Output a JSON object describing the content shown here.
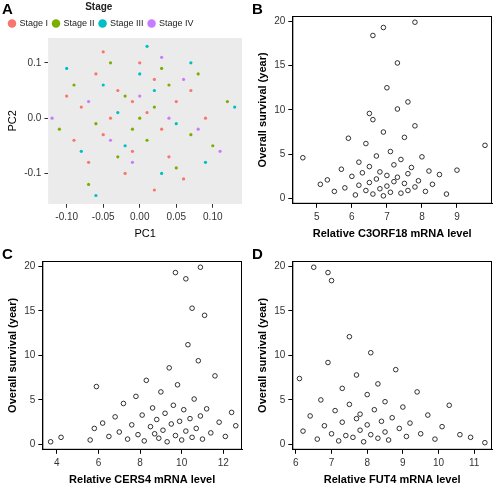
{
  "chart_data": [
    {
      "type": "scatter",
      "panel": "A",
      "x_label": "PC1",
      "y_label": "PC2",
      "grid": true,
      "legend": "top-left",
      "legend_title": "Stage",
      "marker": "circle",
      "xlim": [
        -0.125,
        0.14
      ],
      "xticks": [
        {
          "value": -0.1,
          "label": "-0.10"
        },
        {
          "value": -0.05,
          "label": "-0.05"
        },
        {
          "value": 0,
          "label": "0.00"
        },
        {
          "value": 0.05,
          "label": "0.05"
        },
        {
          "value": 0.1,
          "label": "0.10"
        }
      ],
      "ylim": [
        -0.155,
        0.145
      ],
      "yticks": [
        {
          "value": -0.1,
          "label": "-0.1"
        },
        {
          "value": 0,
          "label": "0.0"
        },
        {
          "value": 0.1,
          "label": "0.1"
        }
      ],
      "series": [
        {
          "name": "Stage I",
          "color": "#F8766D",
          "points": [
            [
              -0.08,
              0.02
            ],
            [
              -0.05,
              -0.03
            ],
            [
              -0.03,
              0.05
            ],
            [
              -0.01,
              -0.06
            ],
            [
              0.01,
              0.01
            ],
            [
              0.03,
              -0.02
            ],
            [
              -0.06,
              0.08
            ],
            [
              0.02,
              0.07
            ],
            [
              -0.02,
              -0.1
            ],
            [
              0.05,
              0.03
            ],
            [
              -0.09,
              -0.04
            ],
            [
              0.0,
              0.1
            ],
            [
              0.04,
              -0.07
            ],
            [
              -0.04,
              0.0
            ],
            [
              0.07,
              0.05
            ],
            [
              -0.07,
              -0.08
            ],
            [
              0.06,
              -0.11
            ],
            [
              -0.1,
              0.04
            ],
            [
              0.09,
              0.0
            ],
            [
              -0.01,
              0.03
            ],
            [
              0.02,
              -0.13
            ],
            [
              -0.05,
              0.12
            ]
          ]
        },
        {
          "name": "Stage II",
          "color": "#7CAE00",
          "points": [
            [
              -0.06,
              -0.01
            ],
            [
              -0.02,
              0.04
            ],
            [
              0.01,
              -0.04
            ],
            [
              0.04,
              0.06
            ],
            [
              -0.09,
              0.06
            ],
            [
              0.07,
              -0.03
            ],
            [
              -0.03,
              -0.07
            ],
            [
              0.0,
              0.0
            ],
            [
              0.03,
              0.09
            ],
            [
              -0.11,
              -0.02
            ],
            [
              0.05,
              -0.09
            ],
            [
              -0.04,
              0.1
            ],
            [
              0.08,
              0.08
            ],
            [
              -0.07,
              -0.12
            ],
            [
              0.1,
              -0.05
            ],
            [
              0.02,
              0.02
            ],
            [
              -0.01,
              -0.02
            ],
            [
              0.12,
              0.03
            ]
          ]
        },
        {
          "name": "Stage III",
          "color": "#00BFC4",
          "points": [
            [
              -0.05,
              0.06
            ],
            [
              -0.02,
              -0.05
            ],
            [
              0.02,
              0.05
            ],
            [
              0.05,
              -0.01
            ],
            [
              -0.08,
              -0.06
            ],
            [
              0.0,
              0.08
            ],
            [
              0.07,
              0.1
            ],
            [
              -0.03,
              0.01
            ],
            [
              0.09,
              -0.08
            ],
            [
              -0.1,
              0.09
            ],
            [
              0.03,
              -0.1
            ],
            [
              0.13,
              0.02
            ],
            [
              -0.06,
              -0.14
            ],
            [
              0.01,
              0.13
            ]
          ]
        },
        {
          "name": "Stage IV",
          "color": "#C77CFF",
          "points": [
            [
              -0.04,
              -0.04
            ],
            [
              0.0,
              0.04
            ],
            [
              0.04,
              0.0
            ],
            [
              -0.07,
              0.03
            ],
            [
              0.06,
              0.07
            ],
            [
              -0.01,
              -0.08
            ],
            [
              0.08,
              -0.02
            ],
            [
              -0.12,
              0.0
            ],
            [
              0.03,
              0.11
            ],
            [
              0.11,
              -0.06
            ]
          ]
        }
      ]
    },
    {
      "type": "scatter",
      "panel": "B",
      "x_label": "Relative C3ORF18 mRNA level",
      "y_label": "Overall survival (year)",
      "grid": false,
      "marker": "open circle",
      "color": "#000000",
      "xlim": [
        4.3,
        10.0
      ],
      "xticks": [
        5,
        6,
        7,
        8,
        9
      ],
      "ylim": [
        -0.6,
        20.6
      ],
      "yticks": [
        0,
        5,
        10,
        15,
        20
      ],
      "points": [
        [
          4.6,
          4.6
        ],
        [
          5.1,
          1.6
        ],
        [
          5.3,
          2.1
        ],
        [
          5.5,
          0.8
        ],
        [
          5.7,
          3.3
        ],
        [
          5.8,
          1.2
        ],
        [
          5.9,
          6.8
        ],
        [
          6.0,
          2.5
        ],
        [
          6.1,
          0.4
        ],
        [
          6.2,
          4.1
        ],
        [
          6.2,
          1.5
        ],
        [
          6.3,
          2.9
        ],
        [
          6.4,
          0.9
        ],
        [
          6.4,
          6.2
        ],
        [
          6.5,
          1.8
        ],
        [
          6.5,
          3.6
        ],
        [
          6.6,
          0.5
        ],
        [
          6.6,
          8.9
        ],
        [
          6.7,
          2.2
        ],
        [
          6.7,
          4.8
        ],
        [
          6.8,
          1.1
        ],
        [
          6.8,
          3.0
        ],
        [
          6.9,
          0.3
        ],
        [
          6.9,
          7.5
        ],
        [
          7.0,
          2.6
        ],
        [
          7.0,
          1.4
        ],
        [
          7.1,
          5.3
        ],
        [
          7.1,
          0.7
        ],
        [
          7.2,
          3.8
        ],
        [
          7.2,
          1.9
        ],
        [
          7.3,
          10.1
        ],
        [
          7.3,
          2.4
        ],
        [
          7.4,
          0.6
        ],
        [
          7.4,
          4.4
        ],
        [
          7.5,
          1.7
        ],
        [
          7.5,
          6.9
        ],
        [
          7.6,
          2.8
        ],
        [
          7.6,
          0.9
        ],
        [
          7.7,
          3.5
        ],
        [
          7.8,
          8.2
        ],
        [
          7.8,
          1.3
        ],
        [
          7.9,
          2.0
        ],
        [
          8.0,
          4.7
        ],
        [
          8.1,
          0.8
        ],
        [
          8.2,
          3.1
        ],
        [
          8.3,
          1.6
        ],
        [
          8.5,
          2.7
        ],
        [
          8.7,
          0.5
        ],
        [
          9.0,
          3.2
        ],
        [
          9.8,
          6.0
        ],
        [
          6.6,
          18.4
        ],
        [
          6.9,
          19.3
        ],
        [
          7.8,
          19.9
        ],
        [
          7.3,
          15.3
        ],
        [
          7.0,
          12.5
        ],
        [
          6.5,
          9.6
        ],
        [
          7.6,
          10.9
        ]
      ]
    },
    {
      "type": "scatter",
      "panel": "C",
      "x_label": "Relative CERS4 mRNA level",
      "y_label": "Overall survival (year)",
      "grid": false,
      "marker": "open circle",
      "color": "#000000",
      "xlim": [
        3.3,
        12.9
      ],
      "xticks": [
        4,
        6,
        8,
        10,
        12
      ],
      "ylim": [
        -0.6,
        20.6
      ],
      "yticks": [
        0,
        5,
        10,
        15,
        20
      ],
      "points": [
        [
          3.7,
          0.3
        ],
        [
          4.2,
          0.8
        ],
        [
          5.6,
          0.5
        ],
        [
          5.8,
          1.8
        ],
        [
          5.9,
          6.5
        ],
        [
          6.2,
          2.4
        ],
        [
          6.5,
          0.9
        ],
        [
          6.8,
          3.1
        ],
        [
          7.0,
          1.4
        ],
        [
          7.2,
          4.6
        ],
        [
          7.4,
          0.6
        ],
        [
          7.6,
          2.2
        ],
        [
          7.8,
          5.4
        ],
        [
          7.9,
          1.1
        ],
        [
          8.1,
          3.3
        ],
        [
          8.2,
          0.4
        ],
        [
          8.3,
          7.2
        ],
        [
          8.5,
          2.0
        ],
        [
          8.6,
          4.1
        ],
        [
          8.7,
          1.2
        ],
        [
          8.8,
          2.8
        ],
        [
          8.9,
          0.7
        ],
        [
          9.0,
          5.9
        ],
        [
          9.1,
          1.6
        ],
        [
          9.2,
          3.5
        ],
        [
          9.3,
          0.3
        ],
        [
          9.4,
          8.6
        ],
        [
          9.5,
          2.3
        ],
        [
          9.6,
          4.4
        ],
        [
          9.7,
          1.0
        ],
        [
          9.7,
          19.3
        ],
        [
          9.8,
          6.7
        ],
        [
          9.9,
          2.6
        ],
        [
          10.0,
          0.5
        ],
        [
          10.1,
          3.9
        ],
        [
          10.2,
          18.6
        ],
        [
          10.2,
          1.5
        ],
        [
          10.3,
          11.2
        ],
        [
          10.4,
          2.9
        ],
        [
          10.5,
          15.3
        ],
        [
          10.5,
          0.8
        ],
        [
          10.6,
          5.1
        ],
        [
          10.7,
          1.8
        ],
        [
          10.8,
          9.4
        ],
        [
          10.9,
          19.9
        ],
        [
          10.9,
          3.2
        ],
        [
          11.0,
          0.6
        ],
        [
          11.1,
          14.5
        ],
        [
          11.2,
          4.0
        ],
        [
          11.4,
          1.3
        ],
        [
          11.6,
          7.7
        ],
        [
          11.8,
          2.5
        ],
        [
          12.1,
          0.9
        ],
        [
          12.4,
          3.6
        ],
        [
          12.6,
          2.1
        ]
      ]
    },
    {
      "type": "scatter",
      "panel": "D",
      "x_label": "Relative FUT4 mRNA level",
      "y_label": "Overall survival (year)",
      "grid": false,
      "marker": "open circle",
      "color": "#000000",
      "xlim": [
        5.9,
        11.5
      ],
      "xticks": [
        6,
        7,
        8,
        9,
        10,
        11
      ],
      "ylim": [
        -0.6,
        20.6
      ],
      "yticks": [
        0,
        5,
        10,
        15,
        20
      ],
      "points": [
        [
          6.1,
          7.4
        ],
        [
          6.2,
          1.5
        ],
        [
          6.4,
          3.2
        ],
        [
          6.5,
          19.9
        ],
        [
          6.6,
          0.6
        ],
        [
          6.7,
          5.0
        ],
        [
          6.8,
          2.1
        ],
        [
          6.9,
          19.3
        ],
        [
          6.9,
          9.2
        ],
        [
          7.0,
          18.4
        ],
        [
          7.0,
          1.2
        ],
        [
          7.1,
          3.8
        ],
        [
          7.2,
          0.4
        ],
        [
          7.3,
          6.3
        ],
        [
          7.3,
          2.5
        ],
        [
          7.4,
          1.0
        ],
        [
          7.5,
          4.5
        ],
        [
          7.5,
          12.1
        ],
        [
          7.6,
          0.8
        ],
        [
          7.7,
          2.9
        ],
        [
          7.7,
          7.8
        ],
        [
          7.8,
          1.6
        ],
        [
          7.8,
          3.4
        ],
        [
          7.9,
          0.3
        ],
        [
          8.0,
          5.6
        ],
        [
          8.0,
          2.2
        ],
        [
          8.1,
          10.3
        ],
        [
          8.1,
          1.1
        ],
        [
          8.2,
          3.9
        ],
        [
          8.3,
          0.7
        ],
        [
          8.3,
          6.8
        ],
        [
          8.4,
          2.6
        ],
        [
          8.5,
          1.4
        ],
        [
          8.5,
          4.8
        ],
        [
          8.6,
          0.5
        ],
        [
          8.7,
          3.0
        ],
        [
          8.8,
          8.4
        ],
        [
          8.9,
          1.8
        ],
        [
          9.0,
          4.2
        ],
        [
          9.1,
          0.9
        ],
        [
          9.2,
          2.4
        ],
        [
          9.4,
          5.9
        ],
        [
          9.5,
          1.2
        ],
        [
          9.7,
          3.3
        ],
        [
          9.9,
          0.6
        ],
        [
          10.1,
          2.0
        ],
        [
          10.3,
          4.4
        ],
        [
          10.6,
          1.1
        ],
        [
          10.9,
          0.8
        ],
        [
          11.3,
          0.2
        ]
      ]
    }
  ]
}
